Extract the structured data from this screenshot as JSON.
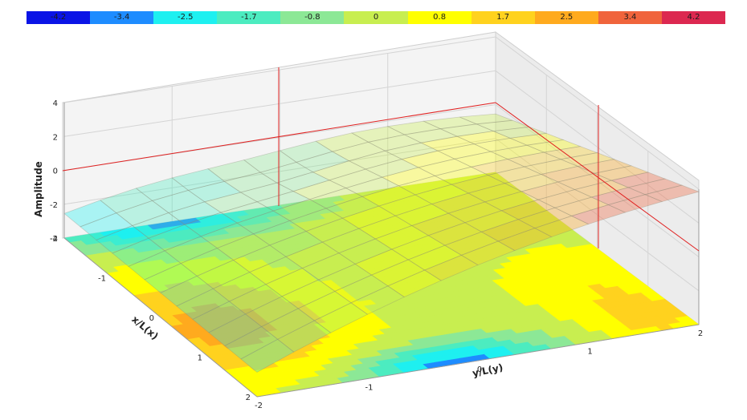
{
  "colorbar": {
    "labels": [
      "-4.2",
      "-3.4",
      "-2.5",
      "-1.7",
      "-0.8",
      "0",
      "0.8",
      "1.7",
      "2.5",
      "3.4",
      "4.2"
    ],
    "colors": [
      "#0a14e6",
      "#1e8cff",
      "#1ef0f0",
      "#4cecc0",
      "#8ce896",
      "#c8ee50",
      "#ffff00",
      "#ffd21e",
      "#ffaa1e",
      "#f0643c",
      "#dc2850"
    ]
  },
  "chart_data": {
    "type": "surface",
    "zlabel": "Amplitude",
    "xlabel": "x/L(x)",
    "ylabel": "y/L(y)",
    "z_ticks": [
      "4",
      "2",
      "0",
      "-2",
      "-4"
    ],
    "x_ticks": [
      "-2",
      "-1",
      "0",
      "1",
      "2"
    ],
    "y_ticks": [
      "-2",
      "-1",
      "0",
      "1",
      "2"
    ],
    "zlim": [
      -4,
      4
    ],
    "xlim": [
      -2,
      2
    ],
    "ylim": [
      -2,
      2
    ],
    "grid": true,
    "contour_floor": true,
    "cursor_lines": true,
    "colorbar_placement": "top"
  }
}
